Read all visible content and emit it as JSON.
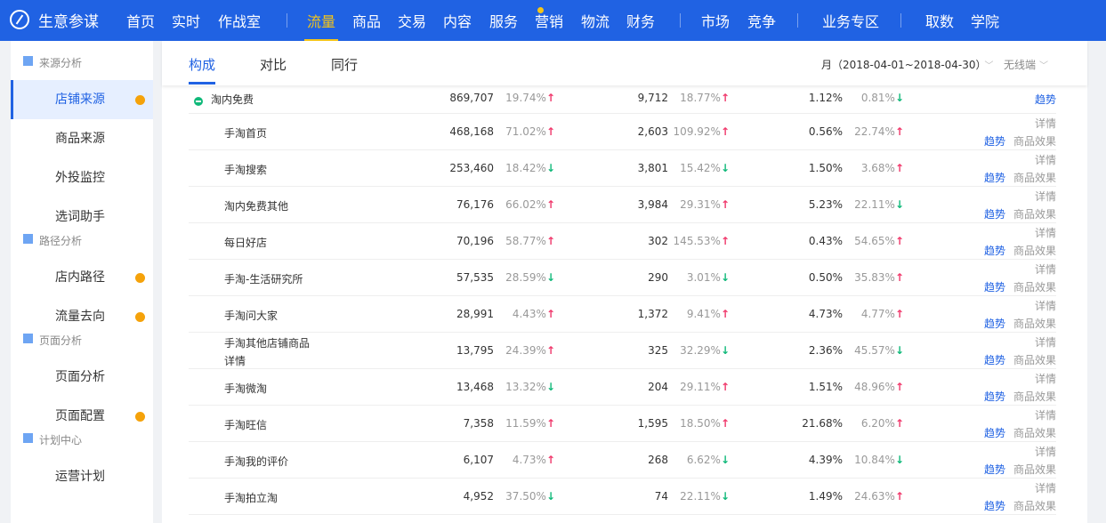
{
  "topbar": {
    "brand": "生意参谋",
    "nav": [
      {
        "label": "首页"
      },
      {
        "label": "实时"
      },
      {
        "label": "作战室"
      },
      {
        "label": "流量",
        "active": true
      },
      {
        "label": "商品"
      },
      {
        "label": "交易"
      },
      {
        "label": "内容"
      },
      {
        "label": "服务",
        "badge": true
      },
      {
        "label": "营销"
      },
      {
        "label": "物流"
      },
      {
        "label": "财务"
      },
      {
        "label": "市场"
      },
      {
        "label": "竞争"
      },
      {
        "label": "业务专区"
      },
      {
        "label": "取数"
      },
      {
        "label": "学院"
      }
    ]
  },
  "sidebar": {
    "groups": [
      {
        "title": "来源分析",
        "items": [
          {
            "label": "店铺来源",
            "active": true,
            "dot": true
          },
          {
            "label": "商品来源"
          },
          {
            "label": "外投监控"
          },
          {
            "label": "选词助手"
          }
        ]
      },
      {
        "title": "路径分析",
        "items": [
          {
            "label": "店内路径",
            "dot": true
          },
          {
            "label": "流量去向",
            "dot": true
          }
        ]
      },
      {
        "title": "页面分析",
        "items": [
          {
            "label": "页面分析"
          },
          {
            "label": "页面配置",
            "dot": true
          }
        ]
      },
      {
        "title": "计划中心",
        "items": [
          {
            "label": "运营计划"
          }
        ]
      }
    ]
  },
  "main": {
    "tabs": [
      {
        "label": "构成",
        "active": true
      },
      {
        "label": "对比"
      },
      {
        "label": "同行"
      }
    ],
    "date_range": "月（2018-04-01~2018-04-30）",
    "device": "无线端",
    "actions": {
      "trend": "趋势",
      "detail": "详情",
      "effect": "商品效果"
    },
    "parent": {
      "name": "淘内免费",
      "c": [
        "869,707",
        "19.74%",
        "up",
        "9,712",
        "18.77%",
        "up",
        "1.12%",
        "0.81%",
        "down"
      ]
    },
    "rows": [
      {
        "name": "手淘首页",
        "c": [
          "468,168",
          "71.02%",
          "up",
          "2,603",
          "109.92%",
          "up",
          "0.56%",
          "22.74%",
          "up"
        ]
      },
      {
        "name": "手淘搜索",
        "c": [
          "253,460",
          "18.42%",
          "down",
          "3,801",
          "15.42%",
          "down",
          "1.50%",
          "3.68%",
          "up"
        ]
      },
      {
        "name": "淘内免费其他",
        "c": [
          "76,176",
          "66.02%",
          "up",
          "3,984",
          "29.31%",
          "up",
          "5.23%",
          "22.11%",
          "down"
        ]
      },
      {
        "name": "每日好店",
        "c": [
          "70,196",
          "58.77%",
          "up",
          "302",
          "145.53%",
          "up",
          "0.43%",
          "54.65%",
          "up"
        ]
      },
      {
        "name": "手淘-生活研究所",
        "c": [
          "57,535",
          "28.59%",
          "down",
          "290",
          "3.01%",
          "down",
          "0.50%",
          "35.83%",
          "up"
        ]
      },
      {
        "name": "手淘问大家",
        "c": [
          "28,991",
          "4.43%",
          "up",
          "1,372",
          "9.41%",
          "up",
          "4.73%",
          "4.77%",
          "up"
        ]
      },
      {
        "name": "手淘其他店铺商品详情",
        "c": [
          "13,795",
          "24.39%",
          "up",
          "325",
          "32.29%",
          "down",
          "2.36%",
          "45.57%",
          "down"
        ]
      },
      {
        "name": "手淘微淘",
        "c": [
          "13,468",
          "13.32%",
          "down",
          "204",
          "29.11%",
          "up",
          "1.51%",
          "48.96%",
          "up"
        ]
      },
      {
        "name": "手淘旺信",
        "c": [
          "7,358",
          "11.59%",
          "up",
          "1,595",
          "18.50%",
          "up",
          "21.68%",
          "6.20%",
          "up"
        ]
      },
      {
        "name": "手淘我的评价",
        "c": [
          "6,107",
          "4.73%",
          "up",
          "268",
          "6.62%",
          "down",
          "4.39%",
          "10.84%",
          "down"
        ]
      },
      {
        "name": "手淘拍立淘",
        "c": [
          "4,952",
          "37.50%",
          "down",
          "74",
          "22.11%",
          "down",
          "1.49%",
          "24.63%",
          "up"
        ]
      }
    ]
  },
  "colors": {
    "primary": "#2062e3",
    "highlight": "#f5c518",
    "up": "#f0386b",
    "down": "#11b97a",
    "dot": "#f5a20a"
  }
}
